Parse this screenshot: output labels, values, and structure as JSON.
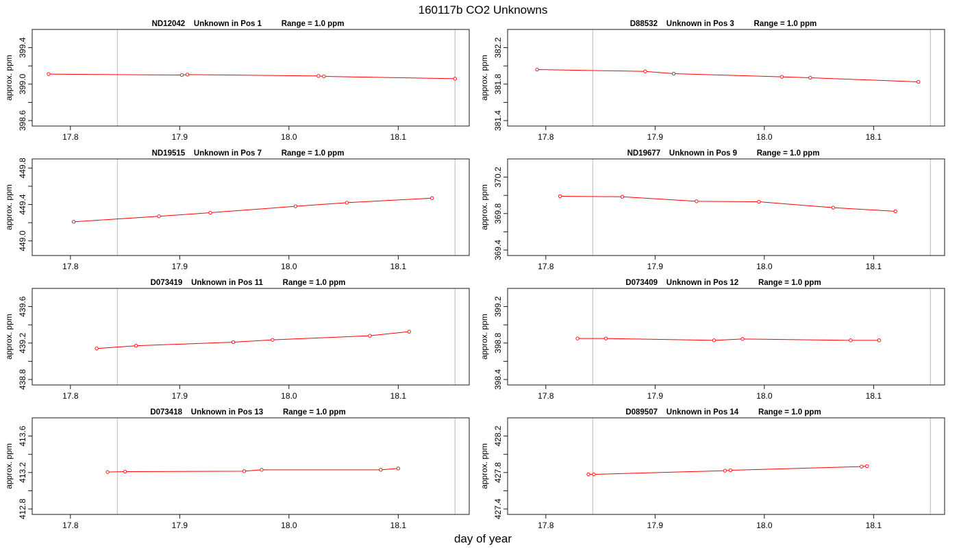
{
  "title": "160117b  CO2 Unknowns",
  "xlabel": "day of year",
  "ylabel": "approx. ppm",
  "line_color": "#ff0000",
  "ref_line_color": "#c8c8c8",
  "chart_data": [
    {
      "type": "line",
      "title": "ND12042    Unknown in Pos 1         Range = 1.0 ppm",
      "xlabel": "",
      "ylabel": "approx. ppm",
      "xlim": [
        17.765,
        18.165
      ],
      "ylim": [
        398.54,
        399.6
      ],
      "xticks": [
        17.8,
        17.9,
        18.0,
        18.1
      ],
      "xtick_labels": [
        "17.8",
        "17.9",
        "18.0",
        "18.1"
      ],
      "yticks": [
        398.6,
        398.8,
        399.0,
        399.2,
        399.4
      ],
      "ytick_labels": [
        "398.6",
        "",
        "399.0",
        "",
        "399.4"
      ],
      "ref_lines": [
        17.843,
        18.152
      ],
      "x": [
        17.78,
        17.902,
        17.907,
        18.027,
        18.032,
        18.152
      ],
      "y": [
        399.11,
        399.1,
        399.105,
        399.09,
        399.085,
        399.06
      ],
      "grid": false,
      "legend": "none"
    },
    {
      "type": "line",
      "title": "D88532    Unknown in Pos 3         Range = 1.0 ppm",
      "xlabel": "",
      "ylabel": "approx. ppm",
      "xlim": [
        17.765,
        18.165
      ],
      "ylim": [
        381.34,
        382.4
      ],
      "xticks": [
        17.8,
        17.9,
        18.0,
        18.1
      ],
      "xtick_labels": [
        "17.8",
        "17.9",
        "18.0",
        "18.1"
      ],
      "yticks": [
        381.4,
        381.6,
        381.8,
        382.0,
        382.2
      ],
      "ytick_labels": [
        "381.4",
        "",
        "381.8",
        "",
        "382.2"
      ],
      "ref_lines": [
        17.843,
        18.152
      ],
      "x": [
        17.792,
        17.891,
        17.917,
        18.016,
        18.042,
        18.141
      ],
      "y": [
        381.96,
        381.94,
        381.915,
        381.88,
        381.87,
        381.825
      ],
      "grid": false,
      "legend": "none"
    },
    {
      "type": "line",
      "title": "ND19515    Unknown in Pos 7         Range = 1.0 ppm",
      "xlabel": "",
      "ylabel": "approx. ppm",
      "xlim": [
        17.765,
        18.165
      ],
      "ylim": [
        448.84,
        449.9
      ],
      "xticks": [
        17.8,
        17.9,
        18.0,
        18.1
      ],
      "xtick_labels": [
        "17.8",
        "17.9",
        "18.0",
        "18.1"
      ],
      "yticks": [
        449.0,
        449.2,
        449.4,
        449.6,
        449.8
      ],
      "ytick_labels": [
        "449.0",
        "",
        "449.4",
        "",
        "449.8"
      ],
      "ref_lines": [
        17.843,
        18.152
      ],
      "x": [
        17.803,
        17.881,
        17.928,
        18.006,
        18.053,
        18.131
      ],
      "y": [
        449.21,
        449.27,
        449.31,
        449.38,
        449.42,
        449.47
      ],
      "grid": false,
      "legend": "none"
    },
    {
      "type": "line",
      "title": "ND19677    Unknown in Pos 9         Range = 1.0 ppm",
      "xlabel": "",
      "ylabel": "approx. ppm",
      "xlim": [
        17.765,
        18.165
      ],
      "ylim": [
        369.34,
        370.4
      ],
      "xticks": [
        17.8,
        17.9,
        18.0,
        18.1
      ],
      "xtick_labels": [
        "17.8",
        "17.9",
        "18.0",
        "18.1"
      ],
      "yticks": [
        369.4,
        369.6,
        369.8,
        370.0,
        370.2
      ],
      "ytick_labels": [
        "369.4",
        "",
        "369.8",
        "",
        "370.2"
      ],
      "ref_lines": [
        17.843,
        18.152
      ],
      "x": [
        17.813,
        17.87,
        17.938,
        17.995,
        18.063,
        18.12
      ],
      "y": [
        369.99,
        369.985,
        369.935,
        369.93,
        369.865,
        369.825
      ],
      "grid": false,
      "legend": "none"
    },
    {
      "type": "line",
      "title": "D073419    Unknown in Pos 11         Range = 1.0 ppm",
      "xlabel": "",
      "ylabel": "approx. ppm",
      "xlim": [
        17.765,
        18.165
      ],
      "ylim": [
        438.74,
        439.8
      ],
      "xticks": [
        17.8,
        17.9,
        18.0,
        18.1
      ],
      "xtick_labels": [
        "17.8",
        "17.9",
        "18.0",
        "18.1"
      ],
      "yticks": [
        438.8,
        439.0,
        439.2,
        439.4,
        439.6
      ],
      "ytick_labels": [
        "438.8",
        "",
        "439.2",
        "",
        "439.6"
      ],
      "ref_lines": [
        17.843,
        18.152
      ],
      "x": [
        17.824,
        17.86,
        17.949,
        17.985,
        18.074,
        18.11
      ],
      "y": [
        439.14,
        439.17,
        439.21,
        439.235,
        439.28,
        439.325
      ],
      "grid": false,
      "legend": "none"
    },
    {
      "type": "line",
      "title": "D073409    Unknown in Pos 12         Range = 1.0 ppm",
      "xlabel": "",
      "ylabel": "approx. ppm",
      "xlim": [
        17.765,
        18.165
      ],
      "ylim": [
        398.34,
        399.4
      ],
      "xticks": [
        17.8,
        17.9,
        18.0,
        18.1
      ],
      "xtick_labels": [
        "17.8",
        "17.9",
        "18.0",
        "18.1"
      ],
      "yticks": [
        398.4,
        398.6,
        398.8,
        399.0,
        399.2
      ],
      "ytick_labels": [
        "398.4",
        "",
        "398.8",
        "",
        "399.2"
      ],
      "ref_lines": [
        17.843,
        18.152
      ],
      "x": [
        17.829,
        17.855,
        17.954,
        17.98,
        18.079,
        18.105
      ],
      "y": [
        398.85,
        398.85,
        398.83,
        398.845,
        398.83,
        398.83
      ],
      "grid": false,
      "legend": "none"
    },
    {
      "type": "line",
      "title": "D073418    Unknown in Pos 13         Range = 1.0 ppm",
      "xlabel": "",
      "ylabel": "approx. ppm",
      "xlim": [
        17.765,
        18.165
      ],
      "ylim": [
        412.74,
        413.8
      ],
      "xticks": [
        17.8,
        17.9,
        18.0,
        18.1
      ],
      "xtick_labels": [
        "17.8",
        "17.9",
        "18.0",
        "18.1"
      ],
      "yticks": [
        412.8,
        413.0,
        413.2,
        413.4,
        413.6
      ],
      "ytick_labels": [
        "412.8",
        "",
        "413.2",
        "",
        "413.6"
      ],
      "ref_lines": [
        17.843,
        18.152
      ],
      "x": [
        17.834,
        17.85,
        17.959,
        17.975,
        18.084,
        18.1
      ],
      "y": [
        413.205,
        413.21,
        413.215,
        413.23,
        413.23,
        413.245
      ],
      "grid": false,
      "legend": "none"
    },
    {
      "type": "line",
      "title": "D089507    Unknown in Pos 14         Range = 1.0 ppm",
      "xlabel": "",
      "ylabel": "approx. ppm",
      "xlim": [
        17.765,
        18.165
      ],
      "ylim": [
        427.34,
        428.4
      ],
      "xticks": [
        17.8,
        17.9,
        18.0,
        18.1
      ],
      "xtick_labels": [
        "17.8",
        "17.9",
        "18.0",
        "18.1"
      ],
      "yticks": [
        427.4,
        427.6,
        427.8,
        428.0,
        428.2
      ],
      "ytick_labels": [
        "427.4",
        "",
        "427.8",
        "",
        "428.2"
      ],
      "ref_lines": [
        17.843,
        18.152
      ],
      "x": [
        17.839,
        17.844,
        17.964,
        17.969,
        18.089,
        18.094
      ],
      "y": [
        427.78,
        427.78,
        427.82,
        427.825,
        427.865,
        427.87
      ],
      "grid": false,
      "legend": "none"
    }
  ]
}
